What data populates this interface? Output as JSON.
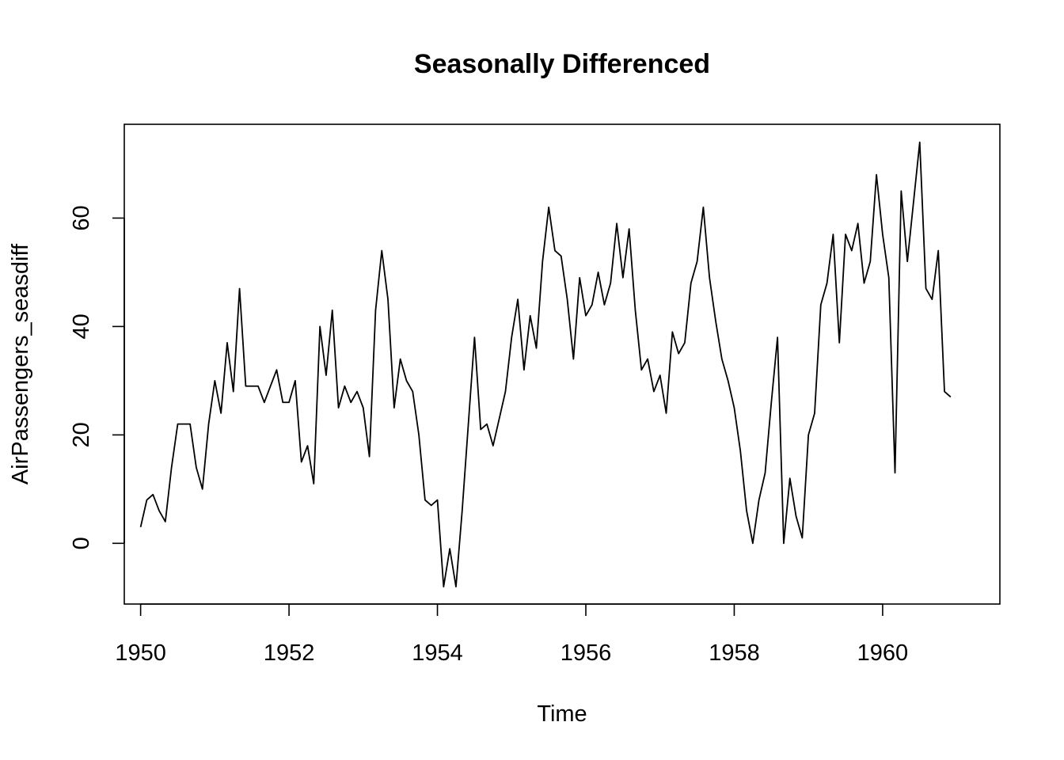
{
  "chart_data": {
    "type": "line",
    "title": "Seasonally Differenced",
    "xlabel": "Time",
    "ylabel": "AirPassengers_seasdiff",
    "xlim": [
      1949.78,
      1961.58
    ],
    "ylim": [
      -11.2,
      77.3
    ],
    "x_ticks": [
      1950,
      1952,
      1954,
      1956,
      1958,
      1960
    ],
    "y_ticks": [
      0,
      20,
      40,
      60
    ],
    "x_start": 1950,
    "x_step": 0.08333333,
    "series": [
      {
        "values": [
          3,
          8,
          9,
          6,
          4,
          14,
          22,
          22,
          22,
          14,
          10,
          22,
          30,
          24,
          37,
          28,
          47,
          29,
          29,
          29,
          26,
          29,
          32,
          26,
          26,
          30,
          15,
          18,
          11,
          40,
          31,
          43,
          25,
          29,
          26,
          28,
          25,
          16,
          43,
          54,
          45,
          25,
          34,
          30,
          28,
          20,
          8,
          7,
          8,
          -8,
          -1,
          -8,
          6,
          22,
          38,
          21,
          22,
          18,
          23,
          28,
          38,
          45,
          32,
          42,
          36,
          52,
          62,
          54,
          53,
          45,
          34,
          49,
          42,
          44,
          50,
          44,
          48,
          59,
          49,
          58,
          43,
          32,
          34,
          28,
          31,
          24,
          39,
          35,
          37,
          48,
          52,
          62,
          49,
          41,
          34,
          30,
          25,
          17,
          6,
          0,
          8,
          13,
          26,
          38,
          0,
          12,
          5,
          1,
          20,
          24,
          44,
          48,
          57,
          37,
          57,
          54,
          59,
          48,
          52,
          68,
          57,
          49,
          13,
          65,
          52,
          63,
          74,
          47,
          45,
          54,
          28,
          27
        ]
      }
    ],
    "grid": false,
    "line_color": "#000000"
  }
}
